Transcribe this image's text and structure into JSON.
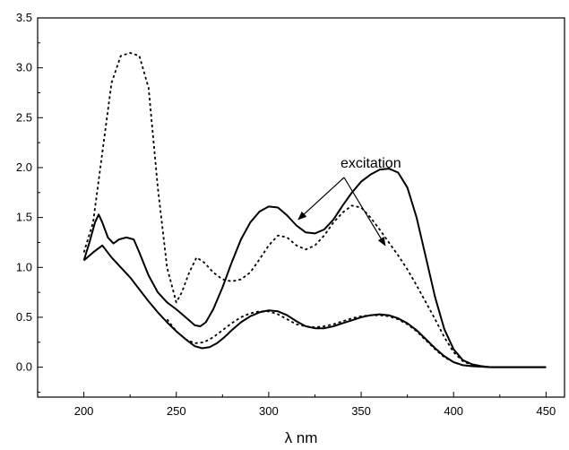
{
  "chart_data": {
    "type": "line",
    "title": "",
    "xlabel": "λ nm",
    "ylabel": "",
    "xlim": [
      175,
      460
    ],
    "ylim": [
      -0.3,
      3.5
    ],
    "xticks": [
      200,
      250,
      300,
      350,
      400,
      450
    ],
    "yticks": [
      0.0,
      0.5,
      1.0,
      1.5,
      2.0,
      2.5,
      3.0,
      3.5
    ],
    "xtick_labels": [
      "200",
      "250",
      "300",
      "350",
      "400",
      "450"
    ],
    "ytick_labels": [
      "0.0",
      "0.5",
      "1.0",
      "1.5",
      "2.0",
      "2.5",
      "3.0",
      "3.5"
    ],
    "grid": false,
    "legend": "none",
    "annotations": [
      {
        "text": "excitation",
        "arrows_to": [
          [
            316,
            1.48
          ],
          [
            363,
            1.22
          ]
        ]
      }
    ],
    "series": [
      {
        "style": "dotted",
        "color": "#000000",
        "points": [
          [
            200,
            1.15
          ],
          [
            205,
            1.45
          ],
          [
            210,
            2.15
          ],
          [
            215,
            2.85
          ],
          [
            220,
            3.12
          ],
          [
            225,
            3.15
          ],
          [
            230,
            3.12
          ],
          [
            235,
            2.8
          ],
          [
            240,
            1.8
          ],
          [
            245,
            1.0
          ],
          [
            250,
            0.65
          ],
          [
            253,
            0.75
          ],
          [
            257,
            0.95
          ],
          [
            261,
            1.1
          ],
          [
            265,
            1.05
          ],
          [
            270,
            0.95
          ],
          [
            275,
            0.88
          ],
          [
            280,
            0.86
          ],
          [
            285,
            0.88
          ],
          [
            290,
            0.95
          ],
          [
            295,
            1.08
          ],
          [
            300,
            1.22
          ],
          [
            305,
            1.32
          ],
          [
            310,
            1.3
          ],
          [
            315,
            1.22
          ],
          [
            320,
            1.18
          ],
          [
            325,
            1.22
          ],
          [
            330,
            1.32
          ],
          [
            335,
            1.45
          ],
          [
            340,
            1.55
          ],
          [
            345,
            1.62
          ],
          [
            350,
            1.6
          ],
          [
            355,
            1.5
          ],
          [
            360,
            1.38
          ],
          [
            365,
            1.25
          ],
          [
            370,
            1.12
          ],
          [
            375,
            0.98
          ],
          [
            380,
            0.82
          ],
          [
            385,
            0.65
          ],
          [
            390,
            0.48
          ],
          [
            395,
            0.3
          ],
          [
            400,
            0.15
          ],
          [
            405,
            0.06
          ],
          [
            410,
            0.02
          ],
          [
            415,
            0.01
          ],
          [
            420,
            0.0
          ],
          [
            430,
            0.0
          ],
          [
            440,
            0.0
          ],
          [
            450,
            0.0
          ]
        ]
      },
      {
        "style": "solid",
        "color": "#000000",
        "points": [
          [
            200,
            1.07
          ],
          [
            203,
            1.25
          ],
          [
            206,
            1.45
          ],
          [
            208,
            1.53
          ],
          [
            210,
            1.45
          ],
          [
            213,
            1.3
          ],
          [
            216,
            1.24
          ],
          [
            219,
            1.28
          ],
          [
            223,
            1.3
          ],
          [
            227,
            1.28
          ],
          [
            230,
            1.15
          ],
          [
            235,
            0.92
          ],
          [
            240,
            0.75
          ],
          [
            245,
            0.65
          ],
          [
            250,
            0.58
          ],
          [
            255,
            0.5
          ],
          [
            260,
            0.42
          ],
          [
            263,
            0.41
          ],
          [
            266,
            0.45
          ],
          [
            270,
            0.58
          ],
          [
            275,
            0.8
          ],
          [
            280,
            1.05
          ],
          [
            285,
            1.28
          ],
          [
            290,
            1.45
          ],
          [
            295,
            1.56
          ],
          [
            300,
            1.61
          ],
          [
            305,
            1.6
          ],
          [
            310,
            1.52
          ],
          [
            315,
            1.42
          ],
          [
            320,
            1.35
          ],
          [
            325,
            1.34
          ],
          [
            330,
            1.38
          ],
          [
            335,
            1.48
          ],
          [
            340,
            1.62
          ],
          [
            345,
            1.75
          ],
          [
            350,
            1.86
          ],
          [
            355,
            1.93
          ],
          [
            360,
            1.98
          ],
          [
            365,
            1.99
          ],
          [
            370,
            1.95
          ],
          [
            375,
            1.8
          ],
          [
            380,
            1.5
          ],
          [
            385,
            1.1
          ],
          [
            390,
            0.7
          ],
          [
            395,
            0.38
          ],
          [
            400,
            0.18
          ],
          [
            405,
            0.07
          ],
          [
            410,
            0.03
          ],
          [
            415,
            0.01
          ],
          [
            420,
            0.0
          ],
          [
            430,
            0.0
          ],
          [
            440,
            0.0
          ],
          [
            450,
            0.0
          ]
        ]
      },
      {
        "style": "dotted",
        "color": "#000000",
        "points": [
          [
            245,
            0.48
          ],
          [
            250,
            0.36
          ],
          [
            255,
            0.28
          ],
          [
            260,
            0.24
          ],
          [
            265,
            0.25
          ],
          [
            270,
            0.3
          ],
          [
            275,
            0.37
          ],
          [
            280,
            0.44
          ],
          [
            285,
            0.5
          ],
          [
            290,
            0.54
          ],
          [
            295,
            0.56
          ],
          [
            300,
            0.56
          ],
          [
            305,
            0.53
          ],
          [
            310,
            0.48
          ],
          [
            315,
            0.43
          ],
          [
            320,
            0.41
          ],
          [
            325,
            0.4
          ],
          [
            330,
            0.41
          ],
          [
            335,
            0.43
          ],
          [
            340,
            0.46
          ],
          [
            345,
            0.49
          ],
          [
            350,
            0.51
          ],
          [
            355,
            0.52
          ],
          [
            360,
            0.52
          ],
          [
            365,
            0.51
          ],
          [
            370,
            0.48
          ],
          [
            375,
            0.43
          ],
          [
            380,
            0.36
          ],
          [
            385,
            0.27
          ],
          [
            390,
            0.18
          ],
          [
            395,
            0.1
          ],
          [
            400,
            0.05
          ],
          [
            405,
            0.02
          ],
          [
            410,
            0.01
          ],
          [
            420,
            0.0
          ],
          [
            450,
            0.0
          ]
        ]
      },
      {
        "style": "solid",
        "color": "#000000",
        "points": [
          [
            200,
            1.07
          ],
          [
            205,
            1.15
          ],
          [
            210,
            1.22
          ],
          [
            215,
            1.1
          ],
          [
            220,
            1.0
          ],
          [
            225,
            0.9
          ],
          [
            230,
            0.78
          ],
          [
            235,
            0.66
          ],
          [
            240,
            0.55
          ],
          [
            245,
            0.45
          ],
          [
            250,
            0.36
          ],
          [
            255,
            0.28
          ],
          [
            260,
            0.21
          ],
          [
            264,
            0.19
          ],
          [
            268,
            0.2
          ],
          [
            272,
            0.24
          ],
          [
            276,
            0.3
          ],
          [
            280,
            0.37
          ],
          [
            285,
            0.45
          ],
          [
            290,
            0.51
          ],
          [
            295,
            0.55
          ],
          [
            300,
            0.57
          ],
          [
            305,
            0.56
          ],
          [
            310,
            0.52
          ],
          [
            315,
            0.46
          ],
          [
            320,
            0.41
          ],
          [
            325,
            0.39
          ],
          [
            330,
            0.39
          ],
          [
            335,
            0.41
          ],
          [
            340,
            0.44
          ],
          [
            345,
            0.47
          ],
          [
            350,
            0.5
          ],
          [
            355,
            0.52
          ],
          [
            360,
            0.53
          ],
          [
            365,
            0.52
          ],
          [
            370,
            0.49
          ],
          [
            375,
            0.44
          ],
          [
            380,
            0.37
          ],
          [
            385,
            0.28
          ],
          [
            390,
            0.19
          ],
          [
            395,
            0.11
          ],
          [
            400,
            0.05
          ],
          [
            405,
            0.02
          ],
          [
            410,
            0.01
          ],
          [
            420,
            0.0
          ],
          [
            450,
            0.0
          ]
        ]
      }
    ]
  }
}
